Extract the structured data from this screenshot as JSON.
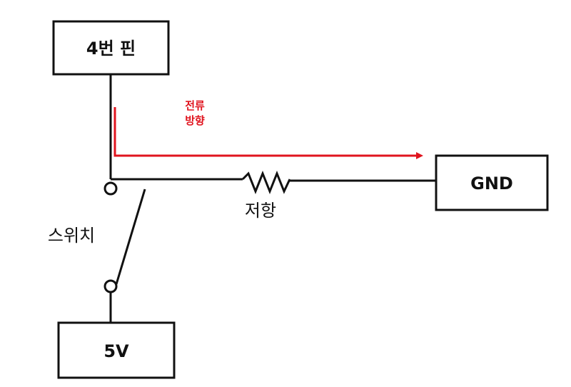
{
  "diagram": {
    "title": "",
    "pin_box": {
      "label": "4번 핀"
    },
    "ground_box": {
      "label": "GND"
    },
    "supply_box": {
      "label": "5V"
    },
    "resistor": {
      "label": "저항"
    },
    "switch": {
      "label": "스위치"
    },
    "current_arrow": {
      "label_line1": "전류",
      "label_line2": "방향",
      "color": "#e0141e"
    },
    "wire_color": "#111111",
    "background": "#ffffff"
  }
}
